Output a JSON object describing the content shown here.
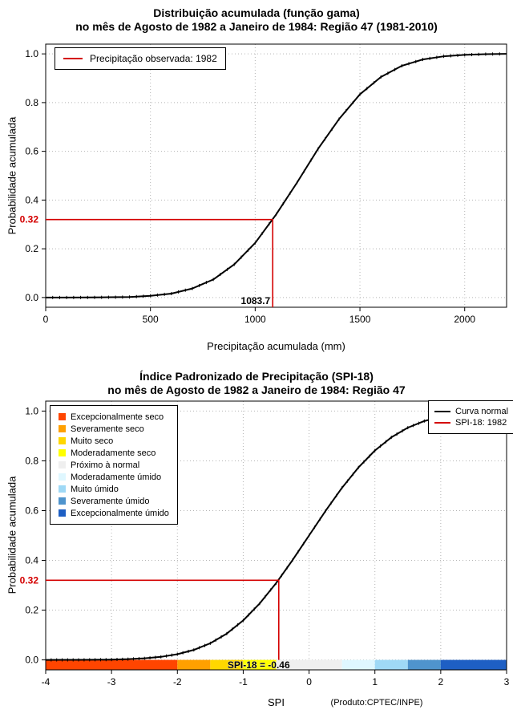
{
  "chart_data": [
    {
      "type": "line",
      "title": "Distribuição acumulada (função gama)",
      "subtitle": "no mês de Agosto de 1982 a Janeiro de 1984: Região 47 (1981-2010)",
      "xlabel": "Precipitação acumulada (mm)",
      "ylabel": "Probabilidade acumulada",
      "xlim": [
        0,
        2200
      ],
      "ylim": [
        0,
        1
      ],
      "xticks": [
        0,
        500,
        1000,
        1500,
        2000
      ],
      "yticks": [
        0,
        0.2,
        0.4,
        0.6,
        0.8,
        1
      ],
      "grid": true,
      "legend": {
        "position": "top-left",
        "entries": [
          {
            "label": "Precipitação observada: 1982",
            "color": "#d40000"
          }
        ]
      },
      "series": [
        {
          "name": "Distribuição gama acumulada",
          "color": "#000000",
          "x": [
            0,
            100,
            200,
            300,
            400,
            500,
            600,
            700,
            800,
            900,
            1000,
            1100,
            1200,
            1300,
            1400,
            1500,
            1600,
            1700,
            1800,
            1900,
            2000,
            2100,
            2200
          ],
          "y": [
            0.0,
            0.0001,
            0.0002,
            0.001,
            0.002,
            0.007,
            0.016,
            0.037,
            0.074,
            0.136,
            0.224,
            0.341,
            0.472,
            0.61,
            0.732,
            0.834,
            0.905,
            0.951,
            0.977,
            0.99,
            0.996,
            0.999,
            1.0
          ]
        }
      ],
      "reference": {
        "x": 1083.7,
        "y": 0.32,
        "color": "#d40000",
        "x_label": "1083.7",
        "y_label": "0.32"
      }
    },
    {
      "type": "line",
      "title": "Índice Padronizado de Precipitação (SPI-18)",
      "subtitle": "no mês de Agosto de 1982 a Janeiro de 1984: Região 47",
      "xlabel": "SPI",
      "ylabel": "Probabilidade acumulada",
      "footnote": "(Produto:CPTEC/INPE)",
      "xlim": [
        -4,
        3
      ],
      "ylim": [
        0,
        1
      ],
      "xticks": [
        -4,
        -3,
        -2,
        -1,
        0,
        1,
        2,
        3
      ],
      "yticks": [
        0,
        0.2,
        0.4,
        0.6,
        0.8,
        1
      ],
      "grid": true,
      "legend": {
        "position": "top-right",
        "entries": [
          {
            "label": "Curva normal",
            "color": "#000000"
          },
          {
            "label": "SPI-18: 1982",
            "color": "#d40000"
          }
        ]
      },
      "categories": [
        {
          "label": "Excepcionalmente seco",
          "color": "#FF4500",
          "from": -4,
          "to": -2
        },
        {
          "label": "Severamente seco",
          "color": "#FFA000",
          "from": -2,
          "to": -1.5
        },
        {
          "label": "Muito seco",
          "color": "#FFD700",
          "from": -1.5,
          "to": -1
        },
        {
          "label": "Moderadamente seco",
          "color": "#FFFF00",
          "from": -1,
          "to": -0.5
        },
        {
          "label": "Próximo à normal",
          "color": "#EFEFEF",
          "from": -0.5,
          "to": 0.5
        },
        {
          "label": "Moderadamente úmido",
          "color": "#DFF7FF",
          "from": 0.5,
          "to": 1
        },
        {
          "label": "Muito úmido",
          "color": "#9FD9F6",
          "from": 1,
          "to": 1.5
        },
        {
          "label": "Severamente úmido",
          "color": "#4F94CD",
          "from": 1.5,
          "to": 2
        },
        {
          "label": "Excepcionalmente úmido",
          "color": "#1E5FC4",
          "from": 2,
          "to": 3
        }
      ],
      "series": [
        {
          "name": "Curva normal",
          "color": "#000000",
          "x": [
            -4,
            -3.75,
            -3.5,
            -3.25,
            -3,
            -2.75,
            -2.5,
            -2.25,
            -2,
            -1.75,
            -1.5,
            -1.25,
            -1,
            -0.75,
            -0.5,
            -0.25,
            0,
            0.25,
            0.5,
            0.75,
            1,
            1.25,
            1.5,
            1.75,
            2,
            2.25,
            2.5,
            2.75,
            3
          ],
          "y": [
            0.0,
            0.0001,
            0.0002,
            0.0006,
            0.0013,
            0.003,
            0.0062,
            0.0122,
            0.0228,
            0.0401,
            0.0668,
            0.1056,
            0.1587,
            0.2266,
            0.3085,
            0.4013,
            0.5,
            0.5987,
            0.6915,
            0.7734,
            0.8413,
            0.8944,
            0.9332,
            0.9599,
            0.9772,
            0.9878,
            0.9938,
            0.997,
            0.9987
          ]
        }
      ],
      "reference": {
        "x": -0.46,
        "y": 0.32,
        "color": "#d40000",
        "y_label": "0.32",
        "annotation": "SPI-18 = -0.46"
      }
    }
  ]
}
